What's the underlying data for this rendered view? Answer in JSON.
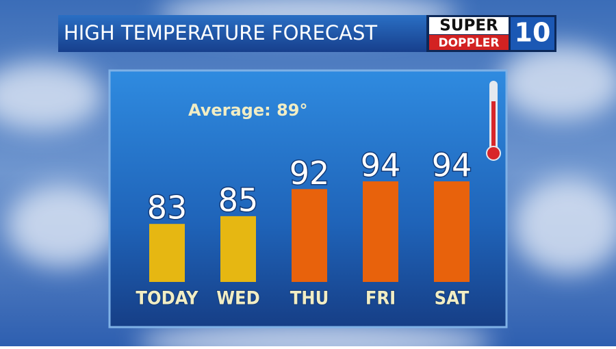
{
  "chart_data": {
    "type": "bar",
    "title": "HIGH TEMPERATURE FORECAST",
    "annotation": "Average: 89°",
    "categories": [
      "TODAY",
      "WED",
      "THU",
      "FRI",
      "SAT"
    ],
    "values": [
      83,
      85,
      92,
      94,
      94
    ],
    "colors": [
      "#e6b712",
      "#e6b712",
      "#e8620c",
      "#e8620c",
      "#e8620c"
    ],
    "ylim": [
      68,
      96
    ]
  },
  "logo": {
    "top": "SUPER",
    "bottom": "DOPPLER",
    "number": "10"
  }
}
